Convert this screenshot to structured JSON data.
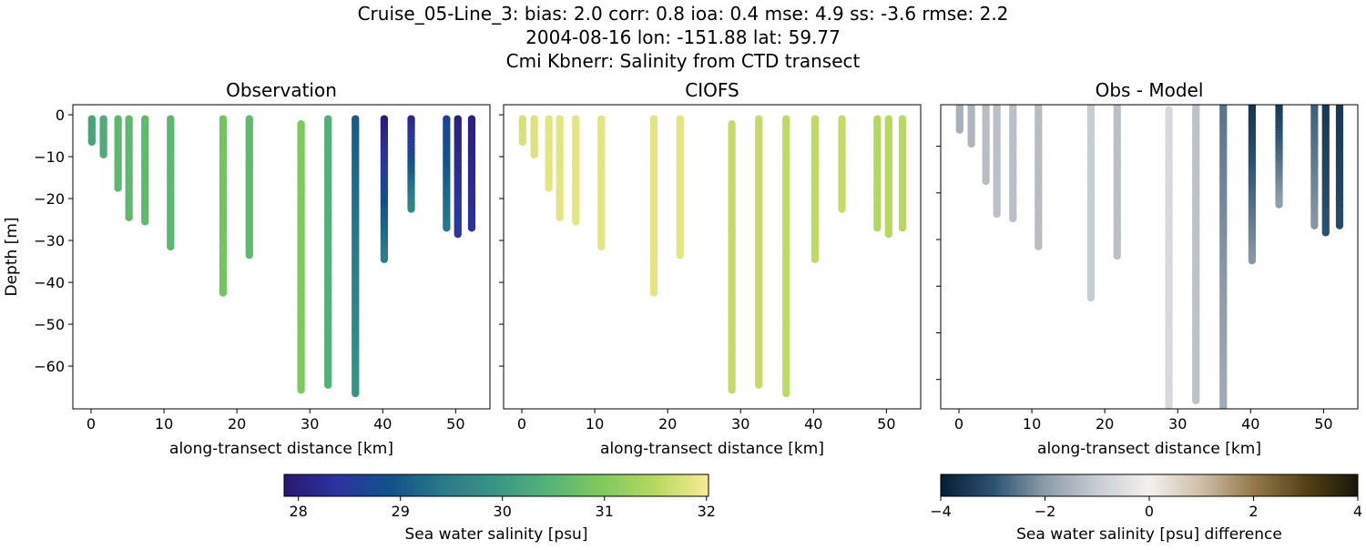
{
  "title_lines": [
    "Cruise_05-Line_3: bias: 2.0  corr: 0.8  ioa: 0.4  mse: 4.9  ss: -3.6  rmse: 2.2",
    "2004-08-16 lon: -151.88 lat: 59.77",
    "Cmi Kbnerr: Salinity from CTD transect"
  ],
  "chart_data": [
    {
      "type": "scatter",
      "title": "Observation",
      "xlabel": "along-transect distance [km]",
      "ylabel": "Depth [m]",
      "xlim": [
        -2.5,
        54.7
      ],
      "ylim": [
        -70.2,
        2.4
      ],
      "xticks": [
        0,
        10,
        20,
        30,
        40,
        50
      ],
      "yticks": [
        0,
        -10,
        -20,
        -30,
        -40,
        -50,
        -60
      ],
      "variable": "obs",
      "colormap": "salinity",
      "grid": false
    },
    {
      "type": "scatter",
      "title": "CIOFS",
      "xlabel": "along-transect distance [km]",
      "ylabel": "",
      "xlim": [
        -2.5,
        54.7
      ],
      "ylim": [
        -70.2,
        2.4
      ],
      "xticks": [
        0,
        10,
        20,
        30,
        40,
        50
      ],
      "yticks": [
        0,
        -10,
        -20,
        -30,
        -40,
        -50,
        -60
      ],
      "variable": "model",
      "colormap": "salinity",
      "grid": false
    },
    {
      "type": "scatter",
      "title": "Obs - Model",
      "xlabel": "along-transect distance [km]",
      "ylabel": "",
      "xlim": [
        -2.5,
        54.7
      ],
      "ylim": [
        -66.3,
        -1.1
      ],
      "xticks": [
        0,
        10,
        20,
        30,
        40,
        50
      ],
      "yticks": [
        -10,
        -20,
        -30,
        -40,
        -50,
        -60
      ],
      "variable": "diff",
      "colormap": "difference",
      "grid": false
    }
  ],
  "stations": [
    {
      "x": 0.1,
      "top": -1,
      "bottom": -6.9,
      "obs": [
        30.2,
        30.2
      ],
      "model": [
        31.75,
        31.75
      ]
    },
    {
      "x": 1.7,
      "top": -1,
      "bottom": -9.8,
      "obs": [
        30.35,
        30.35
      ],
      "model": [
        31.8,
        31.8
      ]
    },
    {
      "x": 3.7,
      "top": -1,
      "bottom": -17.9,
      "obs": [
        30.55,
        30.55
      ],
      "model": [
        31.85,
        31.85
      ]
    },
    {
      "x": 5.2,
      "top": -1,
      "bottom": -24.9,
      "obs": [
        30.6,
        30.6
      ],
      "model": [
        31.85,
        31.85
      ]
    },
    {
      "x": 7.4,
      "top": -1,
      "bottom": -25.9,
      "obs": [
        30.6,
        30.6
      ],
      "model": [
        31.85,
        31.85
      ]
    },
    {
      "x": 10.9,
      "top": -1,
      "bottom": -31.8,
      "obs": [
        30.55,
        30.55
      ],
      "model": [
        31.85,
        31.85
      ]
    },
    {
      "x": 18.1,
      "top": -1,
      "bottom": -42.9,
      "obs": [
        30.85,
        30.85
      ],
      "model": [
        31.85,
        31.85
      ]
    },
    {
      "x": 21.7,
      "top": -1,
      "bottom": -33.8,
      "obs": [
        30.6,
        30.6
      ],
      "model": [
        31.85,
        31.85
      ]
    },
    {
      "x": 28.8,
      "top": -2.2,
      "bottom": -65.7,
      "obs": [
        30.95,
        30.95
      ],
      "model": [
        31.6,
        31.6
      ]
    },
    {
      "x": 32.5,
      "top": -1,
      "bottom": -64.8,
      "obs": [
        30.4,
        30.4
      ],
      "model": [
        31.6,
        31.6
      ]
    },
    {
      "x": 36.25,
      "top": -1,
      "bottom": -66.8,
      "obs": [
        29.0,
        29.9
      ],
      "model": [
        31.55,
        31.55
      ]
    },
    {
      "x": 40.2,
      "top": -1,
      "bottom": -34.8,
      "obs": [
        27.95,
        29.5
      ],
      "model": [
        31.55,
        31.55
      ]
    },
    {
      "x": 43.9,
      "top": -1,
      "bottom": -22.8,
      "obs": [
        28.1,
        29.7
      ],
      "model": [
        31.6,
        31.6
      ]
    },
    {
      "x": 48.75,
      "top": -1,
      "bottom": -27.0,
      "obs": [
        28.6,
        29.4
      ],
      "model": [
        31.45,
        31.45
      ]
    },
    {
      "x": 50.3,
      "top": -1,
      "bottom": -28.9,
      "obs": [
        28.0,
        28.5
      ],
      "model": [
        31.5,
        31.5
      ]
    },
    {
      "x": 52.2,
      "top": -1,
      "bottom": -27.0,
      "obs": [
        28.0,
        28.35
      ],
      "model": [
        31.5,
        31.5
      ]
    }
  ],
  "colorbars": {
    "salinity": {
      "label": "Sea water salinity [psu]",
      "range": [
        27.86,
        32.02
      ],
      "ticks": [
        "28",
        "29",
        "30",
        "31",
        "32"
      ],
      "stops": [
        "#2a1870",
        "#2d33a0",
        "#11528a",
        "#2a7a88",
        "#3a9585",
        "#56b377",
        "#80c95c",
        "#b8d860",
        "#f8ea95"
      ]
    },
    "difference": {
      "label": "Sea water salinity [psu] difference",
      "range": [
        -4,
        4
      ],
      "ticks": [
        "−4",
        "−2",
        "0",
        "2",
        "4"
      ],
      "stops": [
        "#071d33",
        "#2b5272",
        "#8d9ba8",
        "#c7ccd2",
        "#f3f1ee",
        "#cdbfa7",
        "#94794a",
        "#544216",
        "#16170a"
      ]
    }
  }
}
